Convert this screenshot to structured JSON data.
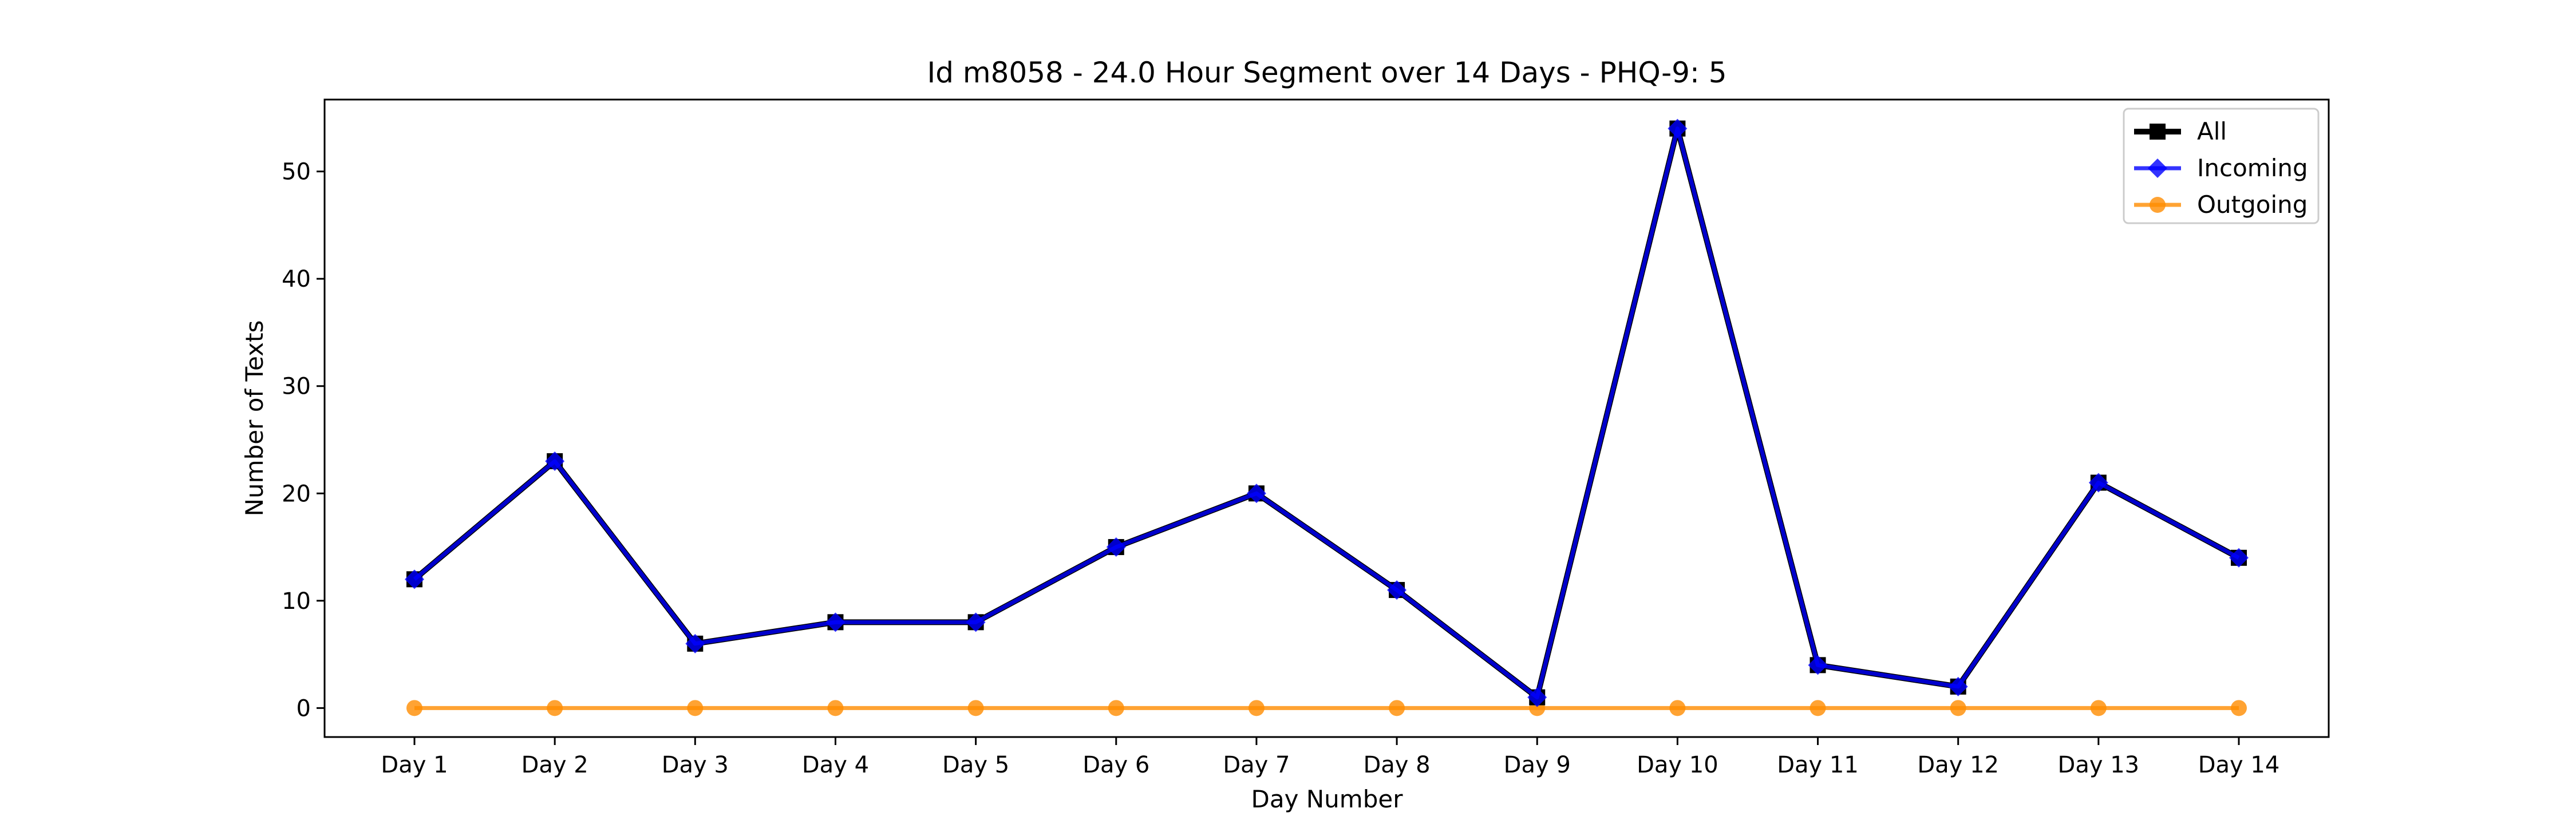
{
  "chart_data": {
    "type": "line",
    "title": "Id m8058 - 24.0 Hour Segment over 14 Days - PHQ-9: 5",
    "xlabel": "Day Number",
    "ylabel": "Number of Texts",
    "categories": [
      "Day 1",
      "Day 2",
      "Day 3",
      "Day 4",
      "Day 5",
      "Day 6",
      "Day 7",
      "Day 8",
      "Day 9",
      "Day 10",
      "Day 11",
      "Day 12",
      "Day 13",
      "Day 14"
    ],
    "ylim": [
      -2.7,
      56.7
    ],
    "yticks": [
      0,
      10,
      20,
      30,
      40,
      50
    ],
    "grid": false,
    "legend_position": "top-right",
    "series": [
      {
        "name": "All",
        "color": "#000000",
        "marker": "square",
        "values": [
          12,
          23,
          6,
          8,
          8,
          15,
          20,
          11,
          1,
          54,
          4,
          2,
          21,
          14
        ]
      },
      {
        "name": "Incoming",
        "color": "#0000ff",
        "marker": "diamond",
        "values": [
          12,
          23,
          6,
          8,
          8,
          15,
          20,
          11,
          1,
          54,
          4,
          2,
          21,
          14
        ]
      },
      {
        "name": "Outgoing",
        "color": "#ff8c00",
        "marker": "circle",
        "values": [
          0,
          0,
          0,
          0,
          0,
          0,
          0,
          0,
          0,
          0,
          0,
          0,
          0,
          0
        ]
      }
    ]
  }
}
